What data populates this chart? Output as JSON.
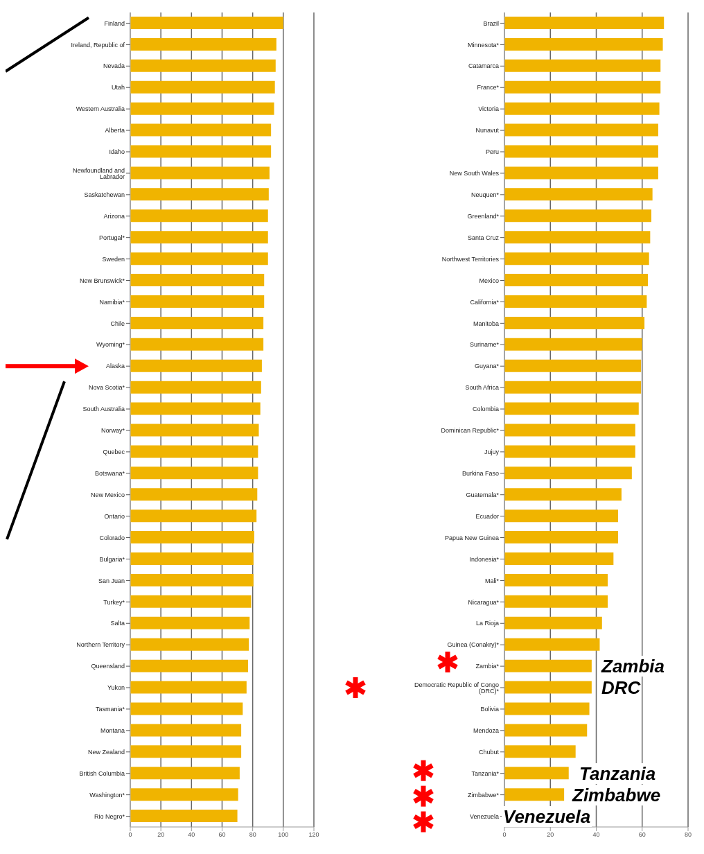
{
  "chart_data": [
    {
      "type": "bar",
      "orientation": "horizontal",
      "categories": [
        "Finland",
        "Ireland, Republic of",
        "Nevada",
        "Utah",
        "Western Australia",
        "Alberta",
        "Idaho",
        "Newfoundland and Labrador",
        "Saskatchewan",
        "Arizona",
        "Portugal*",
        "Sweden",
        "New Brunswick*",
        "Namibia*",
        "Chile",
        "Wyoming*",
        "Alaska",
        "Nova Scotia*",
        "South Australia",
        "Norway*",
        "Quebec",
        "Botswana*",
        "New Mexico",
        "Ontario",
        "Colorado",
        "Bulgaria*",
        "San Juan",
        "Turkey*",
        "Salta",
        "Northern Territory",
        "Queensland",
        "Yukon",
        "Tasmania*",
        "Montana",
        "New Zealand",
        "British Columbia",
        "Washington*",
        "Rio Negro*"
      ],
      "values": [
        100,
        95.5,
        95,
        94.5,
        94,
        92,
        92,
        91,
        90.5,
        90,
        90,
        90,
        87.5,
        87.5,
        87,
        87,
        86,
        85.5,
        85,
        84,
        83.5,
        83.5,
        83,
        82.5,
        81,
        80.5,
        80.5,
        79,
        78,
        77.5,
        77,
        76,
        73.5,
        72.5,
        72.5,
        71.5,
        70.5,
        70
      ],
      "color": "#f0b400",
      "xlim": [
        0,
        120
      ],
      "xticks": [
        0,
        20,
        40,
        60,
        80,
        100,
        120
      ],
      "grid": "x"
    },
    {
      "type": "bar",
      "orientation": "horizontal",
      "categories": [
        "Brazil",
        "Minnesota*",
        "Catamarca",
        "France*",
        "Victoria",
        "Nunavut",
        "Peru",
        "New South Wales",
        "Neuquen*",
        "Greenland*",
        "Santa Cruz",
        "Northwest Territories",
        "Mexico",
        "California*",
        "Manitoba",
        "Suriname*",
        "Guyana*",
        "South Africa",
        "Colombia",
        "Dominican Republic*",
        "Jujuy",
        "Burkina Faso",
        "Guatemala*",
        "Ecuador",
        "Papua New Guinea",
        "Indonesia*",
        "Mali*",
        "Nicaragua*",
        "La Rioja",
        "Guinea (Conakry)*",
        "Zambia*",
        "Democratic Republic of Congo (DRC)*",
        "Bolivia",
        "Mendoza",
        "Chubut",
        "Tanzania*",
        "Zimbabwe*",
        "Venezuela"
      ],
      "values": [
        69.5,
        69,
        68,
        68,
        67.5,
        67,
        67,
        67,
        64.5,
        64,
        63.5,
        63,
        62.5,
        62,
        61,
        60,
        59.5,
        59.5,
        58.5,
        57,
        57,
        55.5,
        51,
        49.5,
        49.5,
        47.5,
        45,
        45,
        42.5,
        41.5,
        38,
        38,
        37,
        36,
        31,
        28,
        26,
        null
      ],
      "color": "#f0b400",
      "xlim": [
        0,
        80
      ],
      "xticks": [
        0,
        20,
        40,
        60,
        80
      ],
      "grid": "x",
      "annotations": [
        "Zambia",
        "DRC",
        "Tanzania",
        "Zimbabwe",
        "Venezuela"
      ]
    }
  ]
}
